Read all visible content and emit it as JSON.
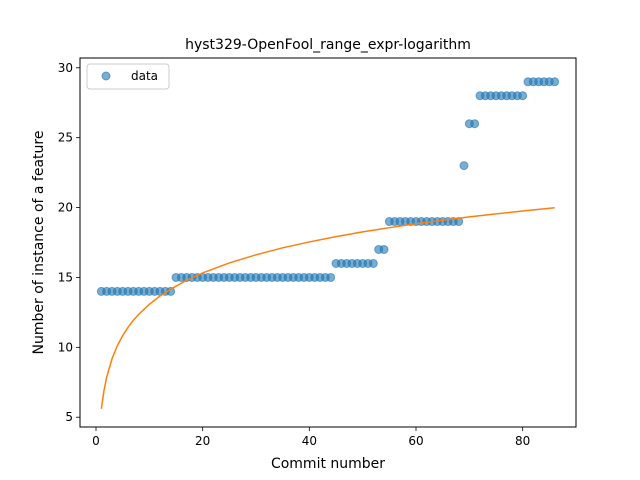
{
  "chart_data": {
    "type": "scatter",
    "title": "hyst329-OpenFool_range_expr-logarithm",
    "xlabel": "Commit number",
    "ylabel": "Number of instance of a feature",
    "xlim": [
      -3,
      90
    ],
    "ylim": [
      4.3,
      30.7
    ],
    "xticks": [
      0,
      20,
      40,
      60,
      80
    ],
    "yticks": [
      5,
      10,
      15,
      20,
      25,
      30
    ],
    "grid": false,
    "legend": {
      "placement": "upper-left",
      "entries": [
        "data"
      ]
    },
    "colors": {
      "data": "#1f77b4",
      "fit": "#ff7f0e"
    },
    "series": [
      {
        "name": "data",
        "kind": "scatter",
        "x": [
          1,
          2,
          3,
          4,
          5,
          6,
          7,
          8,
          9,
          10,
          11,
          12,
          13,
          14,
          15,
          16,
          17,
          18,
          19,
          20,
          21,
          22,
          23,
          24,
          25,
          26,
          27,
          28,
          29,
          30,
          31,
          32,
          33,
          34,
          35,
          36,
          37,
          38,
          39,
          40,
          41,
          42,
          43,
          44,
          45,
          46,
          47,
          48,
          49,
          50,
          51,
          52,
          53,
          54,
          55,
          56,
          57,
          58,
          59,
          60,
          61,
          62,
          63,
          64,
          65,
          66,
          67,
          68,
          69,
          70,
          71,
          72,
          73,
          74,
          75,
          76,
          77,
          78,
          79,
          80,
          81,
          82,
          83,
          84,
          85,
          86
        ],
        "y": [
          14,
          14,
          14,
          14,
          14,
          14,
          14,
          14,
          14,
          14,
          14,
          14,
          14,
          14,
          15,
          15,
          15,
          15,
          15,
          15,
          15,
          15,
          15,
          15,
          15,
          15,
          15,
          15,
          15,
          15,
          15,
          15,
          15,
          15,
          15,
          15,
          15,
          15,
          15,
          15,
          15,
          15,
          15,
          15,
          16,
          16,
          16,
          16,
          16,
          16,
          16,
          16,
          17,
          17,
          19,
          19,
          19,
          19,
          19,
          19,
          19,
          19,
          19,
          19,
          19,
          19,
          19,
          19,
          23,
          26,
          26,
          28,
          28,
          28,
          28,
          28,
          28,
          28,
          28,
          28,
          29,
          29,
          29,
          29,
          29,
          29
        ]
      },
      {
        "kind": "line",
        "x": [
          1,
          1.5,
          2,
          3,
          4,
          5,
          6,
          7,
          8,
          10,
          12,
          14,
          17,
          20,
          25,
          30,
          35,
          40,
          45,
          50,
          55,
          60,
          65,
          70,
          75,
          80,
          86
        ],
        "y": [
          5.6,
          6.92,
          7.86,
          9.18,
          10.12,
          10.84,
          11.43,
          11.93,
          12.36,
          13.08,
          13.67,
          14.16,
          14.8,
          15.32,
          16.04,
          16.62,
          17.12,
          17.54,
          17.92,
          18.26,
          18.56,
          18.84,
          19.09,
          19.33,
          19.55,
          19.75,
          19.99
        ]
      }
    ]
  }
}
